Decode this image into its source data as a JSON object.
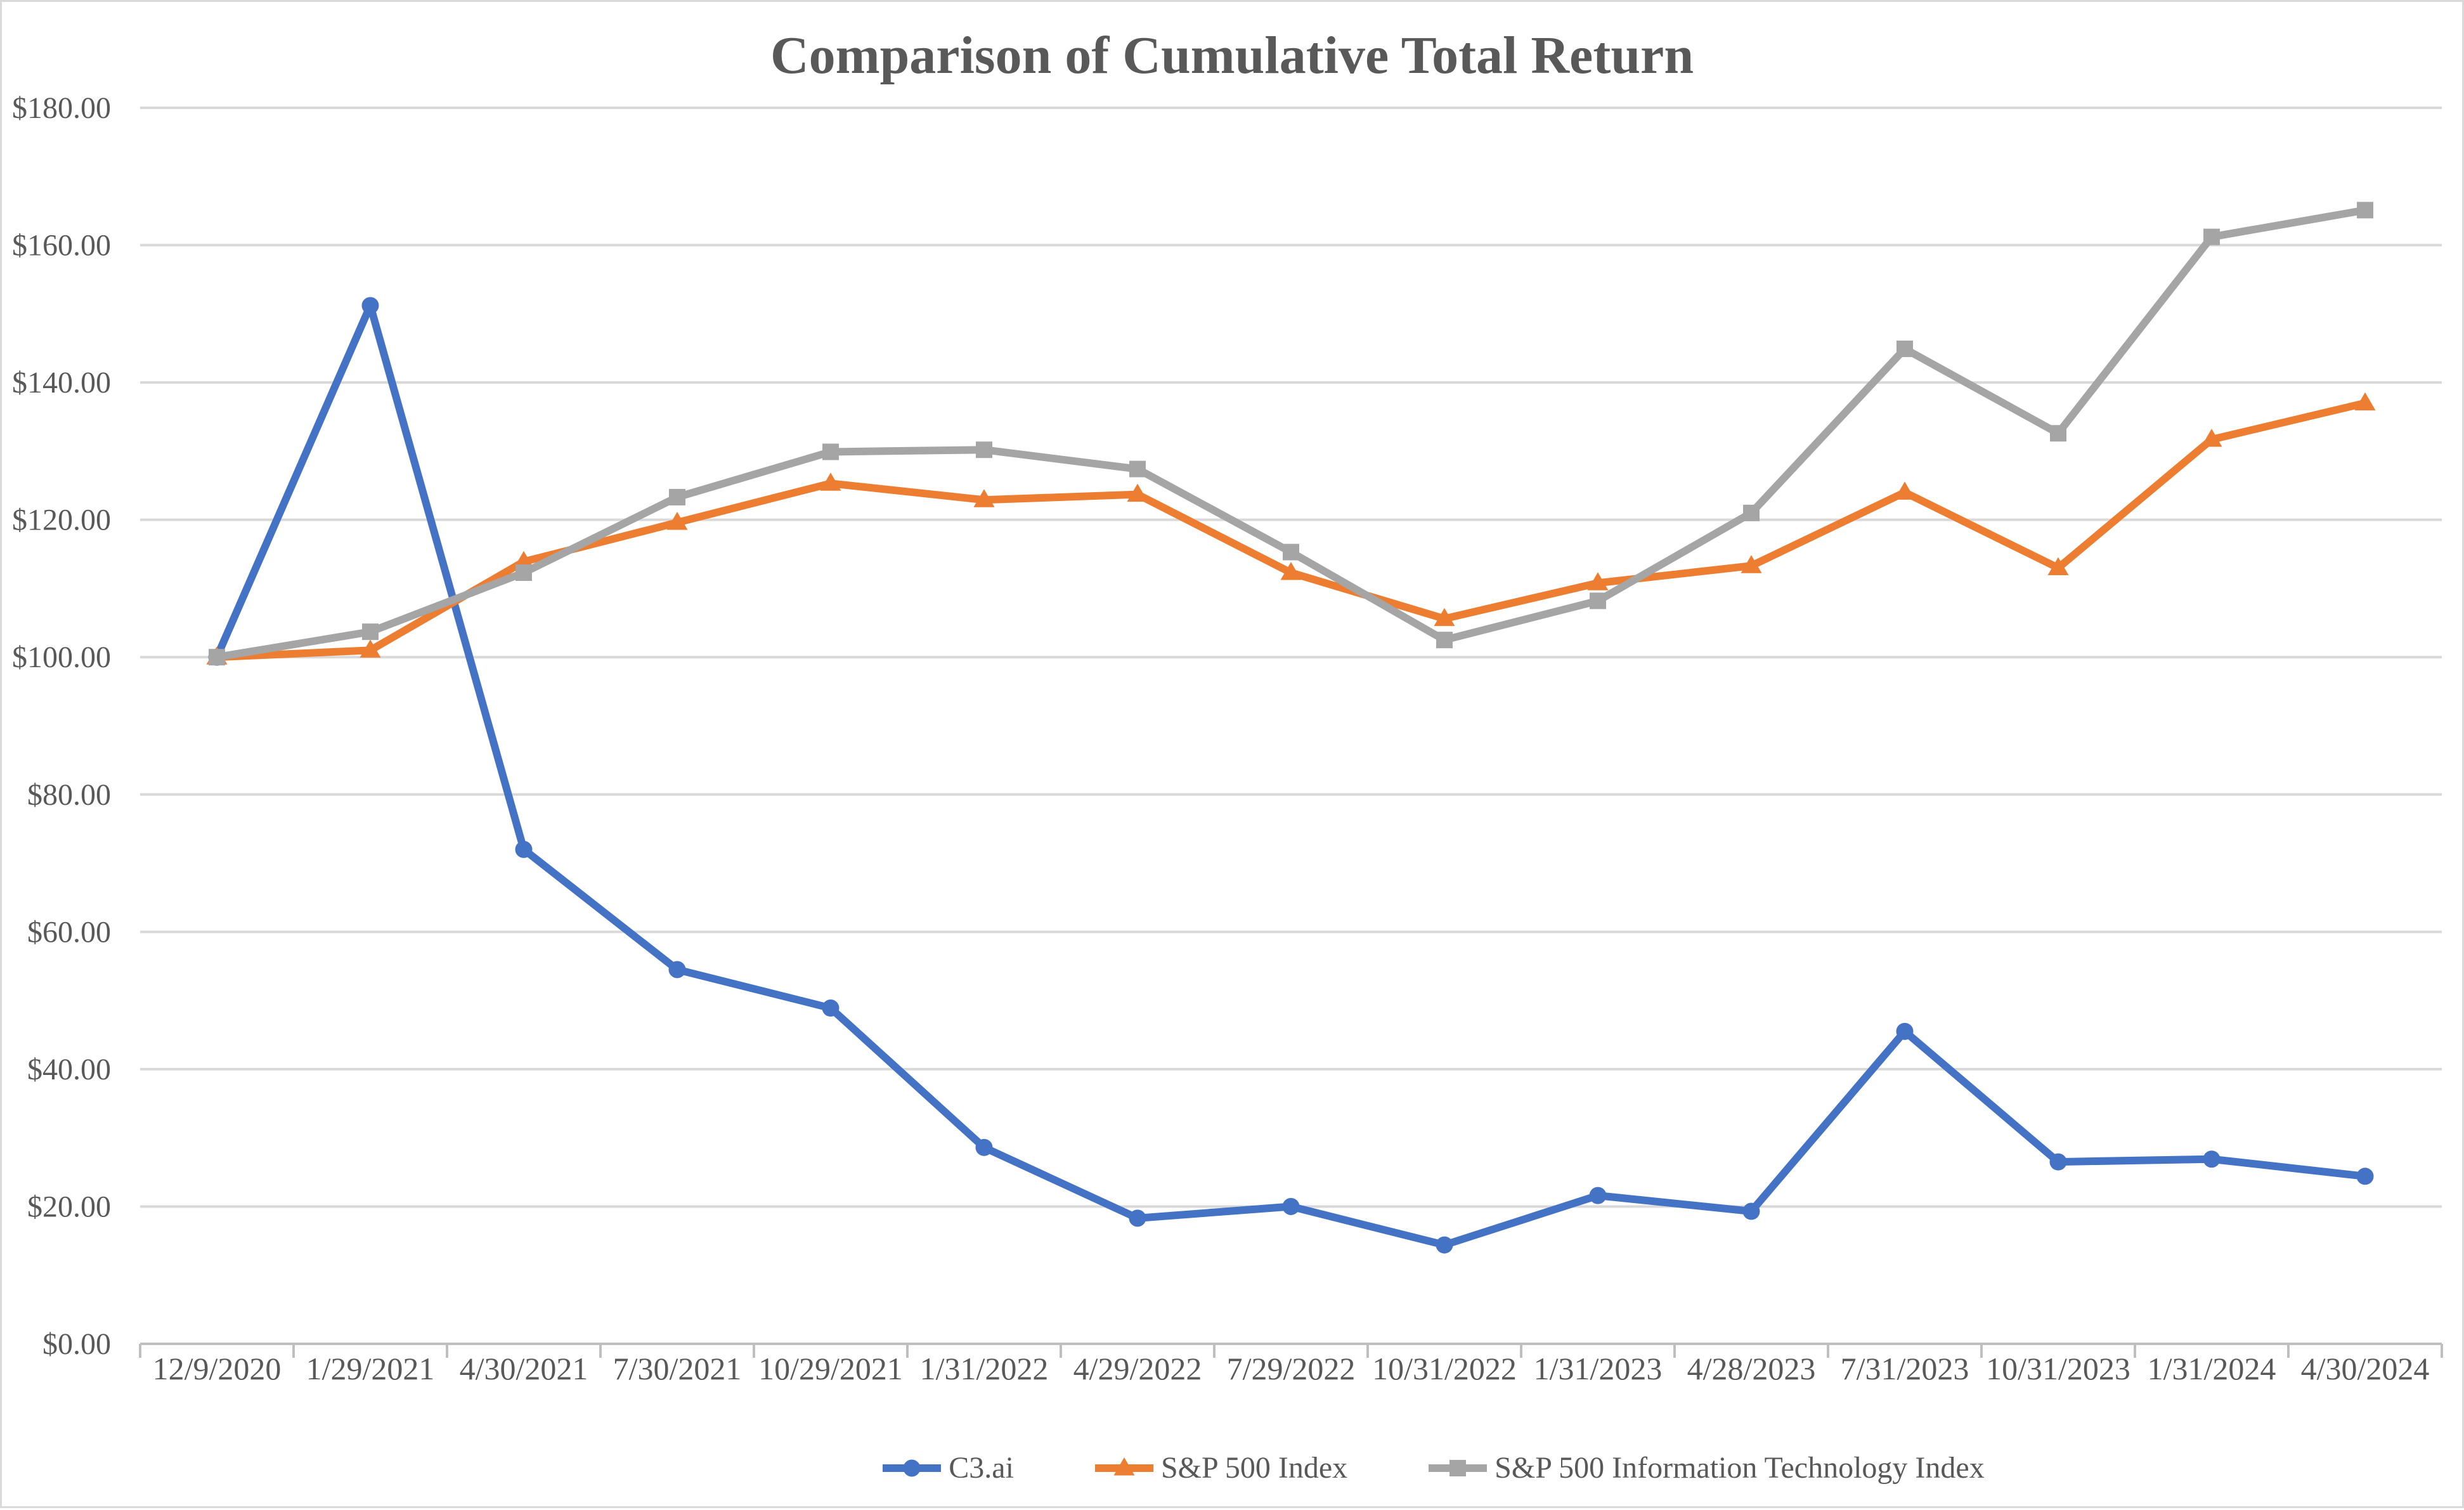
{
  "title": "Comparison of Cumulative Total Return",
  "colors": {
    "c3ai": "#4472C4",
    "sp500": "#ED7D31",
    "sp500_it": "#A5A5A5",
    "gridline": "#D9D9D9",
    "axis_line": "#BFBFBF",
    "label_text": "#595959",
    "title_text": "#595959",
    "background": "#FFFFFF",
    "border": "#D9D9D9"
  },
  "chart_data": {
    "type": "line",
    "title": "Comparison of Cumulative Total Return",
    "categories": [
      "12/9/2020",
      "1/29/2021",
      "4/30/2021",
      "7/30/2021",
      "10/29/2021",
      "1/31/2022",
      "4/29/2022",
      "7/29/2022",
      "10/31/2022",
      "1/31/2023",
      "4/28/2023",
      "7/31/2023",
      "10/31/2023",
      "1/31/2024",
      "4/30/2024"
    ],
    "series": [
      {
        "name": "C3.ai",
        "marker": "circle",
        "color": "#4472C4",
        "values": [
          100,
          151.2,
          72.0,
          54.5,
          48.9,
          28.6,
          18.3,
          20.0,
          14.4,
          21.6,
          19.3,
          45.5,
          26.5,
          26.9,
          24.4
        ]
      },
      {
        "name": "S&P 500 Index",
        "marker": "triangle",
        "color": "#ED7D31",
        "values": [
          100,
          101.0,
          113.9,
          119.6,
          125.3,
          122.9,
          123.7,
          112.3,
          105.6,
          110.8,
          113.3,
          124.0,
          113.0,
          131.7,
          137.0
        ]
      },
      {
        "name": "S&P 500 Information Technology Index",
        "marker": "square",
        "color": "#A5A5A5",
        "values": [
          100,
          103.7,
          112.3,
          123.3,
          129.9,
          130.2,
          127.4,
          115.3,
          102.5,
          108.2,
          121.0,
          144.9,
          132.6,
          161.2,
          165.1
        ]
      }
    ],
    "y_axis": {
      "min": 0,
      "max": 180,
      "step": 20,
      "tick_labels": [
        "$0.00",
        "$20.00",
        "$40.00",
        "$60.00",
        "$80.00",
        "$100.00",
        "$120.00",
        "$140.00",
        "$160.00",
        "$180.00"
      ]
    },
    "legend_position": "bottom",
    "grid": "horizontal"
  }
}
